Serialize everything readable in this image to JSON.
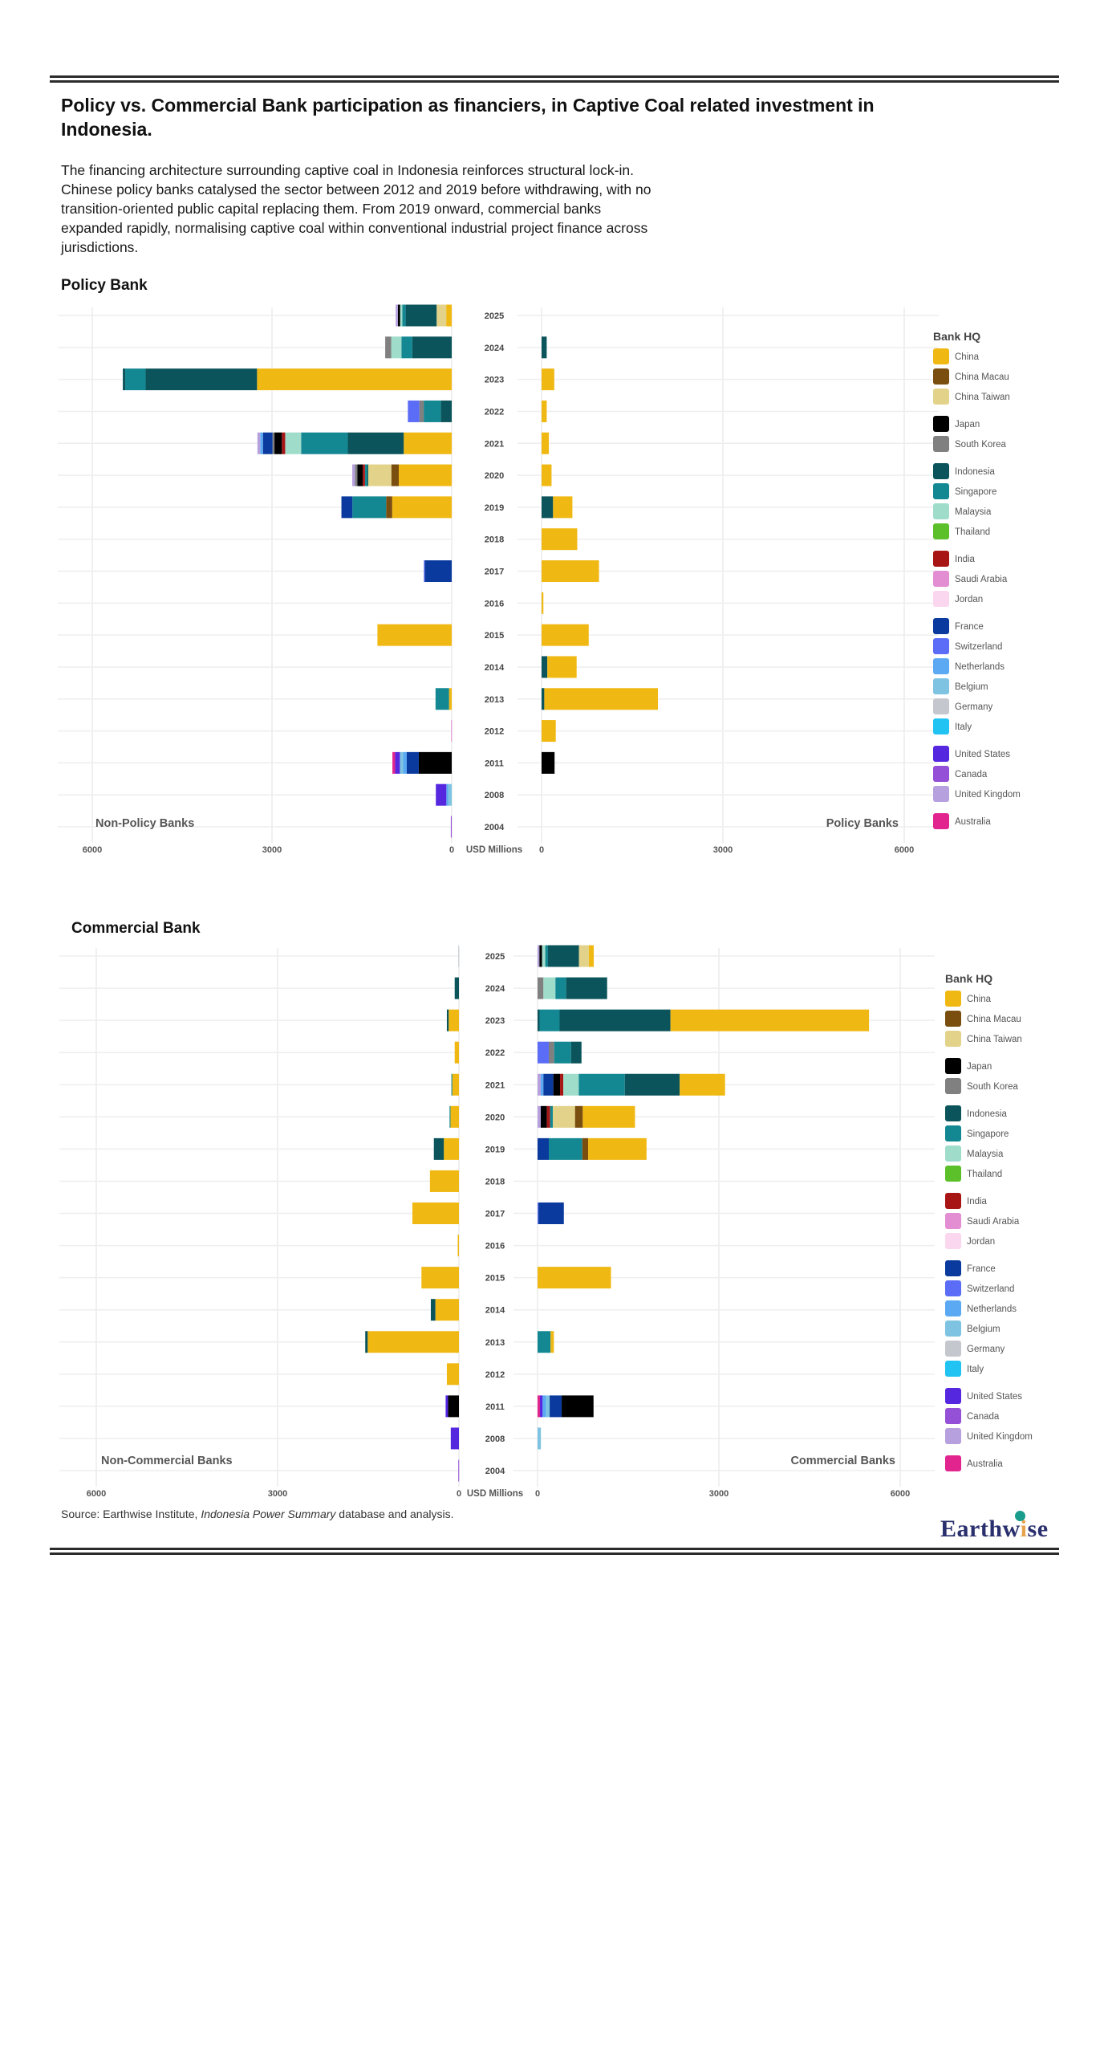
{
  "document": {
    "title": "Policy vs. Commercial Bank participation as financiers, in Captive Coal related investment in Indonesia.",
    "intro": "The financing architecture surrounding captive coal in Indonesia reinforces structural lock-in. Chinese policy banks catalysed the sector between 2012 and 2019 before withdrawing, with no transition-oriented public capital replacing them. From 2019 onward, commercial banks expanded rapidly, normalising captive coal within conventional industrial project finance across jurisdictions.",
    "source_prefix": "Source: Earthwise Institute, ",
    "source_italic": "Indonesia Power Summary",
    "source_suffix": " database and analysis.",
    "logo_text_a": "Earthw",
    "logo_text_i": "i",
    "logo_text_b": "se"
  },
  "legend": {
    "title": "Bank HQ",
    "groups": [
      [
        {
          "name": "China",
          "color": "#F0B813"
        },
        {
          "name": "China Macau",
          "color": "#7A4E0E"
        },
        {
          "name": "China Taiwan",
          "color": "#E3D38A"
        }
      ],
      [
        {
          "name": "Japan",
          "color": "#000000"
        },
        {
          "name": "South Korea",
          "color": "#808080"
        }
      ],
      [
        {
          "name": "Indonesia",
          "color": "#0B545B"
        },
        {
          "name": "Singapore",
          "color": "#138893"
        },
        {
          "name": "Malaysia",
          "color": "#9FDCCA"
        },
        {
          "name": "Thailand",
          "color": "#5CC02A"
        }
      ],
      [
        {
          "name": "India",
          "color": "#A81515"
        },
        {
          "name": "Saudi Arabia",
          "color": "#E38ED2"
        },
        {
          "name": "Jordan",
          "color": "#FBD7EF"
        }
      ],
      [
        {
          "name": "France",
          "color": "#0A3A9E"
        },
        {
          "name": "Switzerland",
          "color": "#5B6CF6"
        },
        {
          "name": "Netherlands",
          "color": "#5AA9F2"
        },
        {
          "name": "Belgium",
          "color": "#7EC4E2"
        },
        {
          "name": "Germany",
          "color": "#C4C8CE"
        },
        {
          "name": "Italy",
          "color": "#21C3F2"
        }
      ],
      [
        {
          "name": "United States",
          "color": "#5528E0"
        },
        {
          "name": "Canada",
          "color": "#9550D8"
        },
        {
          "name": "United Kingdom",
          "color": "#B6A0DE"
        }
      ],
      [
        {
          "name": "Australia",
          "color": "#E2248E"
        }
      ]
    ]
  },
  "chart_data": [
    {
      "type": "bar",
      "orientation": "horizontal-diverging-stacked",
      "title": "Policy Bank",
      "xlabel": "USD Millions",
      "ylabel": "",
      "categories": [
        "2025",
        "2024",
        "2023",
        "2022",
        "2021",
        "2020",
        "2019",
        "2018",
        "2017",
        "2016",
        "2015",
        "2014",
        "2013",
        "2012",
        "2011",
        "2008",
        "2004"
      ],
      "xticks_left": [
        "6000",
        "3000",
        "0"
      ],
      "xticks_right": [
        "0",
        "3000",
        "6000"
      ],
      "xlim": [
        0,
        6500
      ],
      "grid": true,
      "left_label": "Non-Policy Banks",
      "right_label": "Policy Banks",
      "legend_position": "right",
      "left": {
        "2025": [
          [
            "China",
            92
          ],
          [
            "China Taiwan",
            160
          ],
          [
            "Indonesia",
            517
          ],
          [
            "Singapore",
            55
          ],
          [
            "Malaysia",
            37
          ],
          [
            "Japan",
            37
          ],
          [
            "United Kingdom",
            37
          ]
        ],
        "2024": [
          [
            "Indonesia",
            660
          ],
          [
            "Singapore",
            180
          ],
          [
            "Malaysia",
            170
          ],
          [
            "South Korea",
            100
          ]
        ],
        "2023": [
          [
            "China",
            3250
          ],
          [
            "Indonesia",
            1860
          ],
          [
            "Singapore",
            340
          ],
          [
            "Indonesia",
            40
          ]
        ],
        "2022": [
          [
            "Indonesia",
            183
          ],
          [
            "Singapore",
            284
          ],
          [
            "South Korea",
            73
          ],
          [
            "Switzerland",
            192
          ]
        ],
        "2021": [
          [
            "China",
            801
          ],
          [
            "Indonesia",
            934
          ],
          [
            "Singapore",
            779
          ],
          [
            "Malaysia",
            266
          ],
          [
            "India",
            55
          ],
          [
            "Japan",
            124
          ],
          [
            "South Korea",
            32
          ],
          [
            "France",
            160
          ],
          [
            "Netherlands",
            46
          ],
          [
            "United Kingdom",
            46
          ]
        ],
        "2020": [
          [
            "China",
            884
          ],
          [
            "China Macau",
            124
          ],
          [
            "China Taiwan",
            385
          ],
          [
            "Indonesia",
            18
          ],
          [
            "Singapore",
            37
          ],
          [
            "India",
            37
          ],
          [
            "Japan",
            92
          ],
          [
            "South Korea",
            37
          ],
          [
            "United Kingdom",
            46
          ]
        ],
        "2019": [
          [
            "China",
            994
          ],
          [
            "China Macau",
            101
          ],
          [
            "Singapore",
            563
          ],
          [
            "France",
            183
          ]
        ],
        "2018": [],
        "2017": [
          [
            "France",
            450
          ],
          [
            "Switzerland",
            15
          ]
        ],
        "2016": [],
        "2015": [
          [
            "China",
            1240
          ]
        ],
        "2014": [],
        "2013": [
          [
            "China",
            45
          ],
          [
            "Singapore",
            225
          ]
        ],
        "2012": [
          [
            "Saudi Arabia",
            10
          ]
        ],
        "2011": [
          [
            "Japan",
            550
          ],
          [
            "France",
            200
          ],
          [
            "Netherlands",
            60
          ],
          [
            "Belgium",
            55
          ],
          [
            "United States",
            80
          ],
          [
            "Australia",
            45
          ]
        ],
        "2008": [
          [
            "Belgium",
            60
          ],
          [
            "Netherlands",
            30
          ],
          [
            "United States",
            175
          ]
        ],
        "2004": [
          [
            "Canada",
            15
          ]
        ]
      },
      "right": {
        "2025": [],
        "2024": [
          [
            "Indonesia",
            85
          ]
        ],
        "2023": [
          [
            "China",
            210
          ]
        ],
        "2022": [
          [
            "China",
            85
          ]
        ],
        "2021": [
          [
            "China",
            120
          ]
        ],
        "2020": [
          [
            "China",
            165
          ]
        ],
        "2019": [
          [
            "Indonesia",
            190
          ],
          [
            "China",
            320
          ]
        ],
        "2018": [
          [
            "China",
            590
          ]
        ],
        "2017": [
          [
            "China",
            950
          ]
        ],
        "2016": [
          [
            "China",
            30
          ]
        ],
        "2015": [
          [
            "China",
            780
          ]
        ],
        "2014": [
          [
            "Indonesia",
            95
          ],
          [
            "China",
            485
          ]
        ],
        "2013": [
          [
            "Indonesia",
            45
          ],
          [
            "China",
            1880
          ]
        ],
        "2012": [
          [
            "China",
            235
          ]
        ],
        "2011": [
          [
            "Japan",
            215
          ]
        ],
        "2008": [],
        "2004": []
      }
    },
    {
      "type": "bar",
      "orientation": "horizontal-diverging-stacked",
      "title": "Commercial Bank",
      "xlabel": "USD Millions",
      "ylabel": "",
      "categories": [
        "2025",
        "2024",
        "2023",
        "2022",
        "2021",
        "2020",
        "2019",
        "2018",
        "2017",
        "2016",
        "2015",
        "2014",
        "2013",
        "2012",
        "2011",
        "2008",
        "2004"
      ],
      "xticks_left": [
        "6000",
        "3000",
        "0"
      ],
      "xticks_right": [
        "0",
        "3000",
        "6000"
      ],
      "xlim": [
        0,
        6500
      ],
      "grid": true,
      "left_label": "Non-Commercial Banks",
      "right_label": "Commercial Banks",
      "legend_position": "right",
      "left": {
        "2025": [
          [
            "Germany",
            10
          ]
        ],
        "2024": [
          [
            "Indonesia",
            70
          ]
        ],
        "2023": [
          [
            "China",
            170
          ],
          [
            "Indonesia",
            30
          ]
        ],
        "2022": [
          [
            "China",
            70
          ]
        ],
        "2021": [
          [
            "China",
            110
          ],
          [
            "Singapore",
            15
          ]
        ],
        "2020": [
          [
            "China",
            140
          ],
          [
            "Singapore",
            15
          ]
        ],
        "2019": [
          [
            "China",
            250
          ],
          [
            "Indonesia",
            165
          ]
        ],
        "2018": [
          [
            "China",
            480
          ]
        ],
        "2017": [
          [
            "China",
            770
          ]
        ],
        "2016": [
          [
            "China",
            20
          ]
        ],
        "2015": [
          [
            "China",
            620
          ]
        ],
        "2014": [
          [
            "China",
            390
          ],
          [
            "Indonesia",
            75
          ]
        ],
        "2013": [
          [
            "China",
            1510
          ],
          [
            "Indonesia",
            40
          ]
        ],
        "2012": [
          [
            "China",
            200
          ]
        ],
        "2011": [
          [
            "Japan",
            180
          ],
          [
            "United States",
            40
          ]
        ],
        "2008": [
          [
            "United States",
            135
          ]
        ],
        "2004": [
          [
            "Canada",
            10
          ]
        ]
      },
      "right": {
        "2025": [
          [
            "United Kingdom",
            31
          ],
          [
            "Japan",
            44
          ],
          [
            "Malaysia",
            53
          ],
          [
            "Singapore",
            44
          ],
          [
            "Indonesia",
            514
          ],
          [
            "China Taiwan",
            164
          ],
          [
            "China",
            80
          ]
        ],
        "2024": [
          [
            "South Korea",
            97
          ],
          [
            "Malaysia",
            199
          ],
          [
            "Singapore",
            177
          ],
          [
            "Indonesia",
            678
          ]
        ],
        "2023": [
          [
            "Indonesia",
            33
          ],
          [
            "Singapore",
            332
          ],
          [
            "Indonesia",
            1834
          ],
          [
            "China",
            3285
          ]
        ],
        "2022": [
          [
            "Switzerland",
            186
          ],
          [
            "South Korea",
            89
          ],
          [
            "Singapore",
            279
          ],
          [
            "Indonesia",
            173
          ]
        ],
        "2021": [
          [
            "United Kingdom",
            53
          ],
          [
            "Netherlands",
            44
          ],
          [
            "France",
            164
          ],
          [
            "Japan",
            111
          ],
          [
            "India",
            53
          ],
          [
            "Malaysia",
            257
          ],
          [
            "Singapore",
            762
          ],
          [
            "Indonesia",
            908
          ],
          [
            "China",
            750
          ]
        ],
        "2020": [
          [
            "United Kingdom",
            53
          ],
          [
            "Japan",
            102
          ],
          [
            "India",
            53
          ],
          [
            "Singapore",
            44
          ],
          [
            "China Taiwan",
            368
          ],
          [
            "China Macau",
            128
          ],
          [
            "China",
            864
          ]
        ],
        "2019": [
          [
            "France",
            186
          ],
          [
            "Singapore",
            554
          ],
          [
            "China Macau",
            97
          ],
          [
            "China",
            966
          ]
        ],
        "2018": [],
        "2017": [
          [
            "Switzerland",
            15
          ],
          [
            "France",
            420
          ]
        ],
        "2016": [],
        "2015": [
          [
            "China",
            1215
          ]
        ],
        "2014": [],
        "2013": [
          [
            "Singapore",
            215
          ],
          [
            "China",
            55
          ]
        ],
        "2012": [],
        "2011": [
          [
            "Australia",
            40
          ],
          [
            "United States",
            44
          ],
          [
            "Netherlands",
            58
          ],
          [
            "Belgium",
            58
          ],
          [
            "France",
            199
          ],
          [
            "Japan",
            527
          ]
        ],
        "2008": [
          [
            "Belgium",
            55
          ]
        ],
        "2004": []
      }
    }
  ]
}
